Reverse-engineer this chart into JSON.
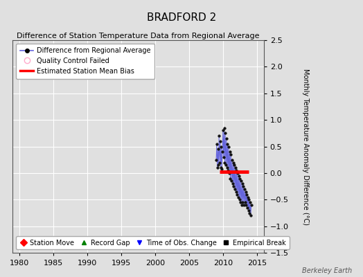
{
  "title": "BRADFORD 2",
  "subtitle": "Difference of Station Temperature Data from Regional Average",
  "ylabel": "Monthly Temperature Anomaly Difference (°C)",
  "xlim": [
    1979,
    2016
  ],
  "ylim": [
    -1.5,
    2.5
  ],
  "yticks": [
    -1.5,
    -1.0,
    -0.5,
    0.0,
    0.5,
    1.0,
    1.5,
    2.0,
    2.5
  ],
  "xticks": [
    1980,
    1985,
    1990,
    1995,
    2000,
    2005,
    2010,
    2015
  ],
  "background_color": "#e0e0e0",
  "plot_bg_color": "#e0e0e0",
  "grid_color": "#ffffff",
  "data_x": [
    2009.0,
    2009.083,
    2009.167,
    2009.25,
    2009.333,
    2009.417,
    2009.5,
    2009.583,
    2009.667,
    2009.75,
    2009.833,
    2009.917,
    2010.0,
    2010.083,
    2010.167,
    2010.25,
    2010.333,
    2010.417,
    2010.5,
    2010.583,
    2010.667,
    2010.75,
    2010.833,
    2010.917,
    2011.0,
    2011.083,
    2011.167,
    2011.25,
    2011.333,
    2011.417,
    2011.5,
    2011.583,
    2011.667,
    2011.75,
    2011.833,
    2011.917,
    2012.0,
    2012.083,
    2012.167,
    2012.25,
    2012.333,
    2012.417,
    2012.5,
    2012.583,
    2012.667,
    2012.75,
    2012.833,
    2012.917,
    2013.0,
    2013.083,
    2013.167,
    2013.25,
    2013.333,
    2013.417,
    2013.5,
    2013.583,
    2013.667,
    2013.75,
    2013.833,
    2013.917,
    2014.0,
    2014.083,
    2014.167
  ],
  "data_y": [
    0.25,
    0.55,
    0.1,
    0.45,
    0.15,
    0.7,
    0.2,
    0.6,
    0.1,
    0.5,
    0.08,
    0.4,
    0.8,
    0.3,
    0.85,
    0.2,
    0.75,
    0.15,
    0.65,
    0.1,
    0.55,
    0.05,
    0.5,
    0.0,
    0.4,
    -0.1,
    0.35,
    -0.15,
    0.25,
    -0.2,
    0.2,
    -0.25,
    0.15,
    -0.3,
    0.1,
    -0.35,
    0.05,
    -0.4,
    0.0,
    -0.45,
    -0.05,
    -0.5,
    -0.1,
    -0.55,
    -0.15,
    -0.6,
    -0.2,
    -0.55,
    -0.25,
    -0.6,
    -0.3,
    -0.55,
    -0.35,
    -0.6,
    -0.4,
    -0.65,
    -0.45,
    -0.7,
    -0.5,
    -0.75,
    -0.55,
    -0.8,
    -0.6
  ],
  "bias_x_start": 2009.5,
  "bias_x_end": 2013.8,
  "bias_y": 0.02,
  "line_color": "#6666dd",
  "marker_color": "#111111",
  "bias_color": "#ff0000",
  "watermark": "Berkeley Earth",
  "watermark_color": "#555555",
  "legend1_items": [
    "Difference from Regional Average",
    "Quality Control Failed",
    "Estimated Station Mean Bias"
  ],
  "legend2_items": [
    "Station Move",
    "Record Gap",
    "Time of Obs. Change",
    "Empirical Break"
  ]
}
